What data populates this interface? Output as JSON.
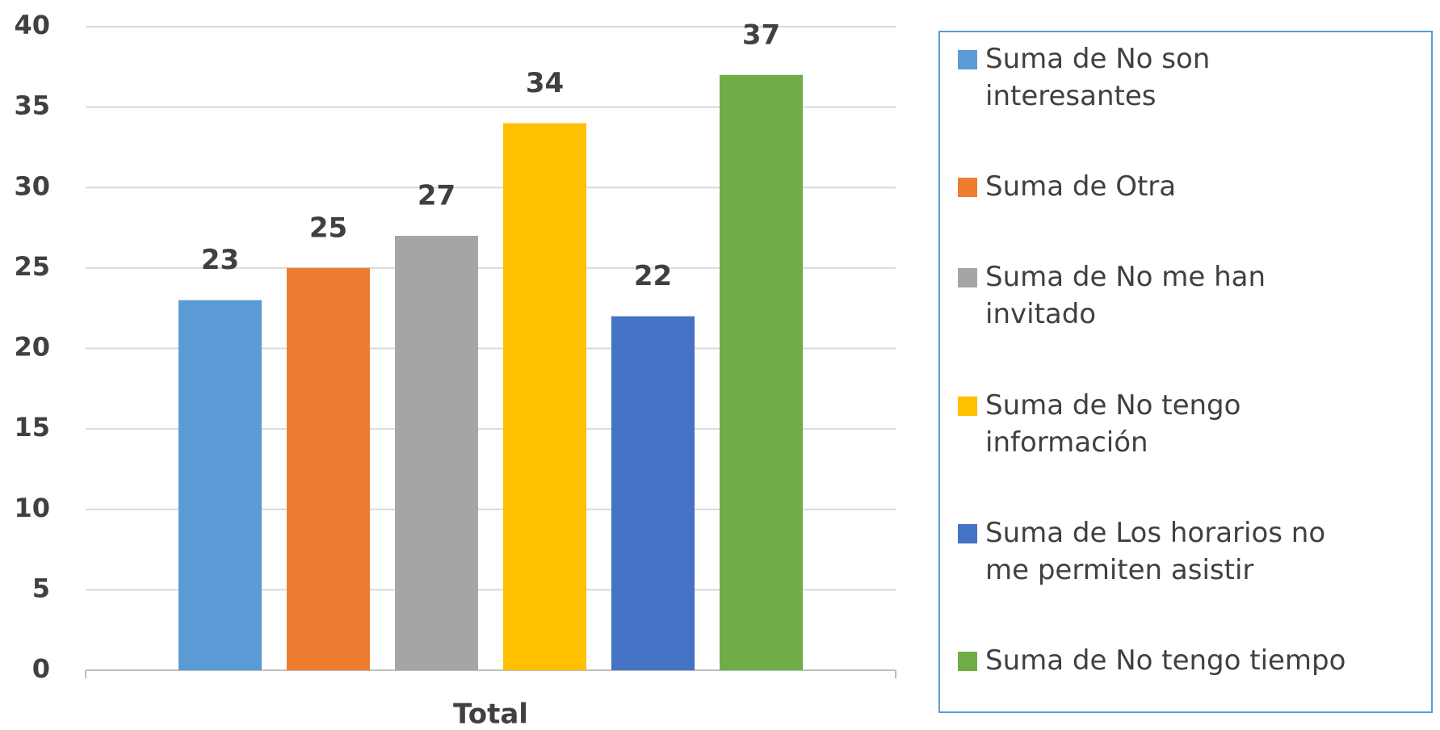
{
  "chart_data": {
    "type": "bar",
    "categories": [
      "Total"
    ],
    "series": [
      {
        "name": "Suma de No son interesantes",
        "color": "#5b9bd5",
        "values": [
          23
        ]
      },
      {
        "name": "Suma de Otra",
        "color": "#ed7d31",
        "values": [
          25
        ]
      },
      {
        "name": "Suma de No me han invitado",
        "color": "#a5a5a5",
        "values": [
          27
        ]
      },
      {
        "name": "Suma de No tengo información",
        "color": "#ffc000",
        "values": [
          34
        ]
      },
      {
        "name": "Suma de Los horarios no me permiten asistir",
        "color": "#4472c4",
        "values": [
          22
        ]
      },
      {
        "name": "Suma de No tengo tiempo",
        "color": "#70ad47",
        "values": [
          37
        ]
      }
    ],
    "ylim": [
      0,
      40
    ],
    "yticks": [
      0,
      5,
      10,
      15,
      20,
      25,
      30,
      35,
      40
    ],
    "grid": true,
    "legend": "right"
  }
}
